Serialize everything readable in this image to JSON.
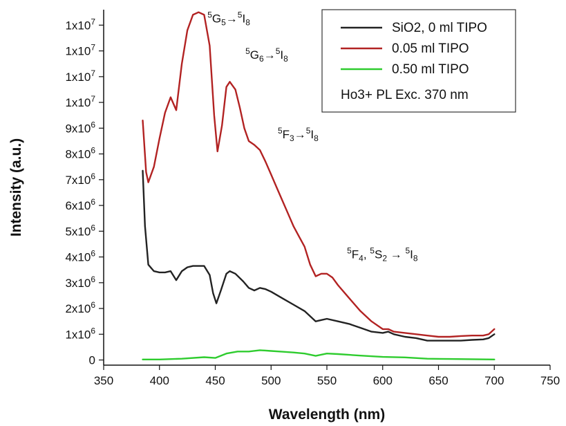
{
  "chart_data": {
    "type": "line",
    "xlabel": "Wavelength (nm)",
    "ylabel": "Intensity (a.u.)",
    "xlim": [
      350,
      750
    ],
    "ylim": [
      -200000,
      13600000
    ],
    "x_ticks": [
      350,
      400,
      450,
      500,
      550,
      600,
      650,
      700,
      750
    ],
    "y_ticks": [
      {
        "value": 0,
        "label": "0"
      },
      {
        "value": 1000000,
        "label": "1x10",
        "exp": "6"
      },
      {
        "value": 2000000,
        "label": "2x10",
        "exp": "6"
      },
      {
        "value": 3000000,
        "label": "3x10",
        "exp": "6"
      },
      {
        "value": 4000000,
        "label": "4x10",
        "exp": "6"
      },
      {
        "value": 5000000,
        "label": "5x10",
        "exp": "6"
      },
      {
        "value": 6000000,
        "label": "6x10",
        "exp": "6"
      },
      {
        "value": 7000000,
        "label": "7x10",
        "exp": "6"
      },
      {
        "value": 8000000,
        "label": "8x10",
        "exp": "6"
      },
      {
        "value": 9000000,
        "label": "9x10",
        "exp": "6"
      },
      {
        "value": 10000000,
        "label": "1x10",
        "exp": "7"
      },
      {
        "value": 11000000,
        "label": "1x10",
        "exp": "7"
      },
      {
        "value": 12000000,
        "label": "1x10",
        "exp": "7"
      },
      {
        "value": 13000000,
        "label": "1x10",
        "exp": "7"
      }
    ],
    "legend_position": "top-right",
    "legend_note": "Ho3+ PL Exc. 370 nm",
    "series": [
      {
        "name": "SiO2, 0 ml TIPO",
        "color": "#222222",
        "points": [
          [
            385,
            7350000
          ],
          [
            387,
            5200000
          ],
          [
            390,
            3700000
          ],
          [
            395,
            3450000
          ],
          [
            400,
            3400000
          ],
          [
            405,
            3400000
          ],
          [
            410,
            3450000
          ],
          [
            415,
            3100000
          ],
          [
            420,
            3450000
          ],
          [
            425,
            3600000
          ],
          [
            430,
            3650000
          ],
          [
            440,
            3650000
          ],
          [
            445,
            3300000
          ],
          [
            448,
            2600000
          ],
          [
            451,
            2200000
          ],
          [
            455,
            2700000
          ],
          [
            460,
            3350000
          ],
          [
            463,
            3450000
          ],
          [
            468,
            3350000
          ],
          [
            475,
            3050000
          ],
          [
            480,
            2800000
          ],
          [
            485,
            2700000
          ],
          [
            490,
            2800000
          ],
          [
            495,
            2750000
          ],
          [
            500,
            2650000
          ],
          [
            510,
            2400000
          ],
          [
            520,
            2150000
          ],
          [
            530,
            1900000
          ],
          [
            535,
            1700000
          ],
          [
            540,
            1500000
          ],
          [
            545,
            1550000
          ],
          [
            550,
            1600000
          ],
          [
            560,
            1500000
          ],
          [
            570,
            1400000
          ],
          [
            580,
            1250000
          ],
          [
            590,
            1100000
          ],
          [
            600,
            1050000
          ],
          [
            605,
            1100000
          ],
          [
            610,
            1000000
          ],
          [
            620,
            900000
          ],
          [
            630,
            850000
          ],
          [
            640,
            750000
          ],
          [
            650,
            750000
          ],
          [
            660,
            750000
          ],
          [
            670,
            750000
          ],
          [
            680,
            780000
          ],
          [
            690,
            800000
          ],
          [
            695,
            850000
          ],
          [
            700,
            1000000
          ]
        ]
      },
      {
        "name": "0.05 ml TIPO",
        "color": "#b22222",
        "points": [
          [
            385,
            9300000
          ],
          [
            388,
            7300000
          ],
          [
            390,
            6900000
          ],
          [
            395,
            7500000
          ],
          [
            400,
            8600000
          ],
          [
            405,
            9600000
          ],
          [
            410,
            10200000
          ],
          [
            415,
            9700000
          ],
          [
            420,
            11500000
          ],
          [
            425,
            12800000
          ],
          [
            430,
            13400000
          ],
          [
            435,
            13500000
          ],
          [
            440,
            13400000
          ],
          [
            445,
            12200000
          ],
          [
            449,
            9500000
          ],
          [
            452,
            8100000
          ],
          [
            456,
            9100000
          ],
          [
            460,
            10600000
          ],
          [
            463,
            10800000
          ],
          [
            468,
            10500000
          ],
          [
            472,
            9800000
          ],
          [
            476,
            9000000
          ],
          [
            480,
            8500000
          ],
          [
            485,
            8350000
          ],
          [
            490,
            8150000
          ],
          [
            495,
            7700000
          ],
          [
            500,
            7200000
          ],
          [
            505,
            6700000
          ],
          [
            510,
            6200000
          ],
          [
            515,
            5700000
          ],
          [
            520,
            5200000
          ],
          [
            525,
            4800000
          ],
          [
            530,
            4400000
          ],
          [
            535,
            3700000
          ],
          [
            540,
            3250000
          ],
          [
            545,
            3350000
          ],
          [
            550,
            3350000
          ],
          [
            555,
            3200000
          ],
          [
            560,
            2900000
          ],
          [
            570,
            2400000
          ],
          [
            580,
            1900000
          ],
          [
            590,
            1500000
          ],
          [
            600,
            1200000
          ],
          [
            605,
            1200000
          ],
          [
            610,
            1100000
          ],
          [
            620,
            1050000
          ],
          [
            630,
            1000000
          ],
          [
            640,
            950000
          ],
          [
            650,
            900000
          ],
          [
            660,
            900000
          ],
          [
            670,
            930000
          ],
          [
            680,
            950000
          ],
          [
            690,
            950000
          ],
          [
            695,
            1000000
          ],
          [
            700,
            1200000
          ]
        ]
      },
      {
        "name": "0.50 ml TIPO",
        "color": "#2ecc2e",
        "points": [
          [
            385,
            20000
          ],
          [
            400,
            20000
          ],
          [
            420,
            50000
          ],
          [
            440,
            110000
          ],
          [
            450,
            80000
          ],
          [
            460,
            250000
          ],
          [
            470,
            330000
          ],
          [
            480,
            330000
          ],
          [
            490,
            380000
          ],
          [
            500,
            350000
          ],
          [
            510,
            320000
          ],
          [
            520,
            290000
          ],
          [
            530,
            250000
          ],
          [
            540,
            160000
          ],
          [
            550,
            250000
          ],
          [
            560,
            230000
          ],
          [
            570,
            200000
          ],
          [
            580,
            170000
          ],
          [
            600,
            120000
          ],
          [
            620,
            100000
          ],
          [
            640,
            50000
          ],
          [
            660,
            40000
          ],
          [
            680,
            30000
          ],
          [
            700,
            20000
          ]
        ]
      }
    ],
    "annotations": [
      {
        "x": 443,
        "y": 13100000,
        "parts": [
          {
            "t": "5",
            "sup": true
          },
          {
            "t": "G"
          },
          {
            "t": "5",
            "sub": true
          },
          {
            "t": "→"
          },
          {
            "t": "5",
            "sup": true
          },
          {
            "t": "I"
          },
          {
            "t": "8",
            "sub": true
          }
        ]
      },
      {
        "x": 477,
        "y": 11700000,
        "parts": [
          {
            "t": "5",
            "sup": true
          },
          {
            "t": "G"
          },
          {
            "t": "6",
            "sub": true
          },
          {
            "t": "→"
          },
          {
            "t": "5",
            "sup": true
          },
          {
            "t": "I"
          },
          {
            "t": "8",
            "sub": true
          }
        ]
      },
      {
        "x": 506,
        "y": 8600000,
        "parts": [
          {
            "t": "5",
            "sup": true
          },
          {
            "t": "F"
          },
          {
            "t": "3",
            "sub": true
          },
          {
            "t": "→"
          },
          {
            "t": "5",
            "sup": true
          },
          {
            "t": "I"
          },
          {
            "t": "8",
            "sub": true
          }
        ]
      },
      {
        "x": 568,
        "y": 3950000,
        "parts": [
          {
            "t": "5",
            "sup": true
          },
          {
            "t": "F"
          },
          {
            "t": "4",
            "sub": true
          },
          {
            "t": ", "
          },
          {
            "t": "5",
            "sup": true
          },
          {
            "t": "S"
          },
          {
            "t": "2",
            "sub": true
          },
          {
            "t": " → "
          },
          {
            "t": "5",
            "sup": true
          },
          {
            "t": "I"
          },
          {
            "t": "8",
            "sub": true
          }
        ]
      }
    ]
  }
}
